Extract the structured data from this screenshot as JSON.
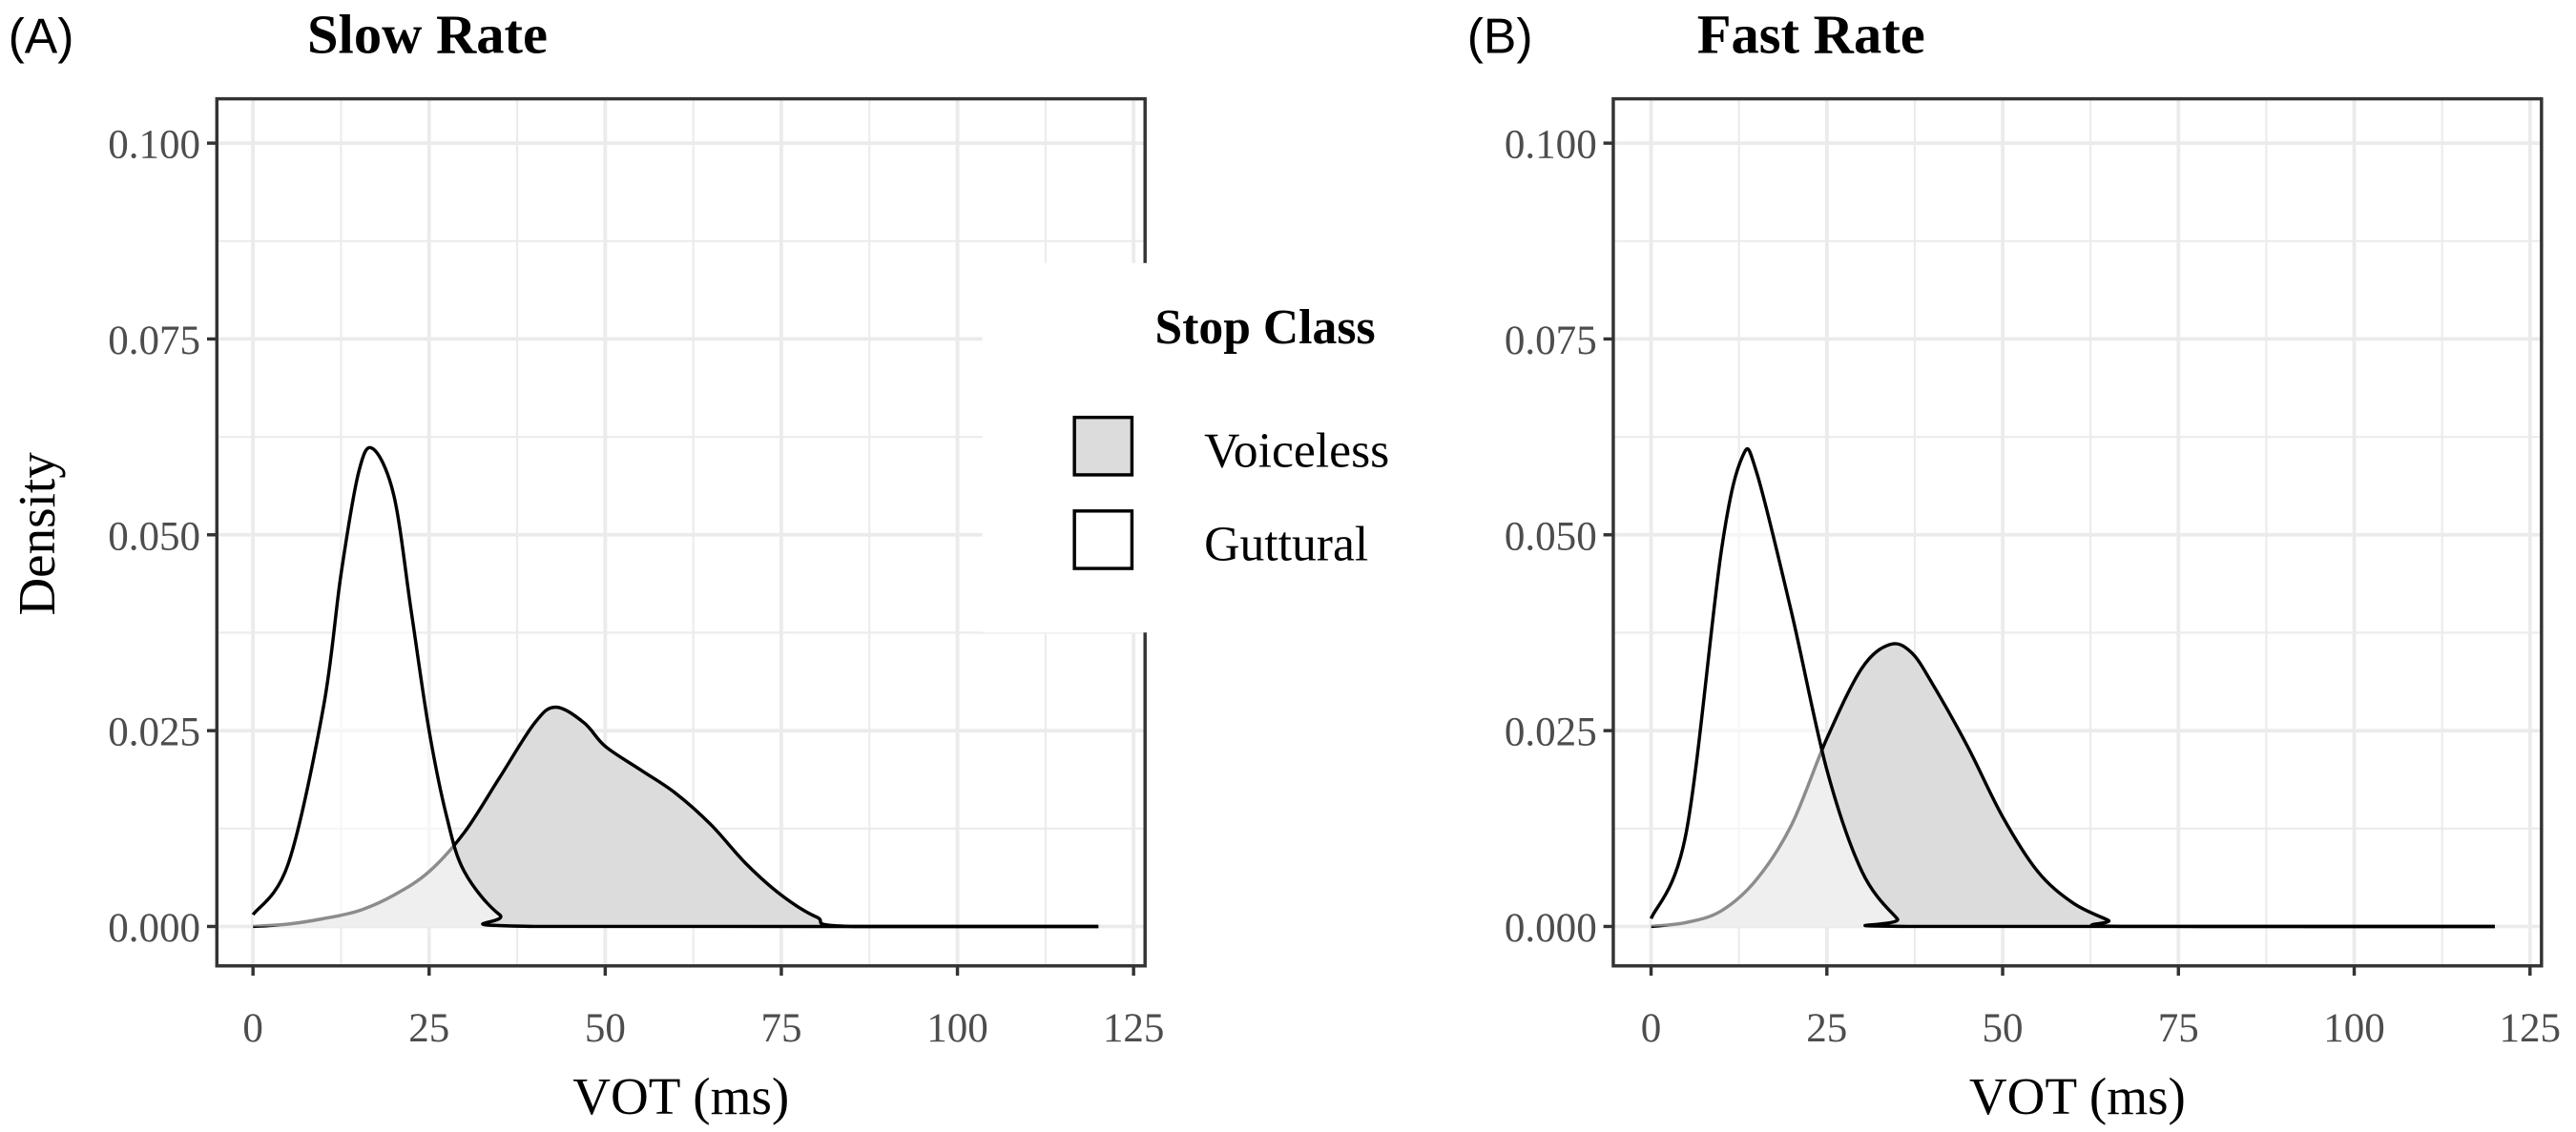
{
  "chart_data": [
    {
      "type": "area",
      "panel_label": "(A)",
      "title": "Slow Rate",
      "xlabel": "VOT (ms)",
      "ylabel": "Density",
      "xlim": [
        0,
        125
      ],
      "ylim": [
        0,
        0.1
      ],
      "x_ticks": [
        "0",
        "25",
        "50",
        "75",
        "100",
        "125"
      ],
      "y_ticks": [
        "0.000",
        "0.025",
        "0.050",
        "0.075",
        "0.100"
      ],
      "grid": true,
      "series": [
        {
          "name": "Voiceless",
          "fill": "#dcdcdc",
          "x": [
            0,
            5,
            10,
            15,
            20,
            25,
            30,
            35,
            40,
            43,
            47,
            50,
            55,
            60,
            65,
            70,
            75,
            80,
            85,
            120
          ],
          "y": [
            0,
            0.0003,
            0.001,
            0.002,
            0.004,
            0.007,
            0.012,
            0.019,
            0.026,
            0.028,
            0.026,
            0.023,
            0.02,
            0.017,
            0.013,
            0.008,
            0.004,
            0.0012,
            0,
            0
          ]
        },
        {
          "name": "Guttural",
          "fill": "#ffffff",
          "x": [
            0,
            5,
            10,
            12.5,
            15,
            17,
            20,
            22.5,
            25,
            27.5,
            30,
            35,
            40,
            120
          ],
          "y": [
            0.0015,
            0.008,
            0.028,
            0.045,
            0.058,
            0.061,
            0.055,
            0.04,
            0.025,
            0.014,
            0.007,
            0.0015,
            0,
            0
          ]
        }
      ]
    },
    {
      "type": "area",
      "panel_label": "(B)",
      "title": "Fast Rate",
      "xlabel": "VOT (ms)",
      "ylabel": "",
      "xlim": [
        0,
        125
      ],
      "ylim": [
        0,
        0.1
      ],
      "x_ticks": [
        "0",
        "25",
        "50",
        "75",
        "100",
        "125"
      ],
      "y_ticks": [
        "0.000",
        "0.025",
        "0.050",
        "0.075",
        "0.100"
      ],
      "grid": true,
      "series": [
        {
          "name": "Voiceless",
          "fill": "#dcdcdc",
          "x": [
            0,
            5,
            10,
            15,
            20,
            25,
            30,
            34,
            37,
            40,
            45,
            50,
            55,
            60,
            65,
            67,
            120
          ],
          "y": [
            0,
            0.0005,
            0.002,
            0.006,
            0.013,
            0.024,
            0.033,
            0.036,
            0.035,
            0.031,
            0.023,
            0.014,
            0.007,
            0.003,
            0.0008,
            0,
            0
          ]
        },
        {
          "name": "Guttural",
          "fill": "#ffffff",
          "x": [
            0,
            5,
            10,
            13,
            15,
            20,
            25,
            30,
            35,
            37,
            120
          ],
          "y": [
            0.001,
            0.012,
            0.048,
            0.06,
            0.058,
            0.04,
            0.02,
            0.007,
            0.001,
            0,
            0
          ]
        }
      ]
    }
  ],
  "legend": {
    "title": "Stop Class",
    "placement": "right of panel A",
    "items": [
      {
        "label": "Voiceless",
        "fill": "#dcdcdc"
      },
      {
        "label": "Guttural",
        "fill": "#ffffff"
      }
    ]
  }
}
